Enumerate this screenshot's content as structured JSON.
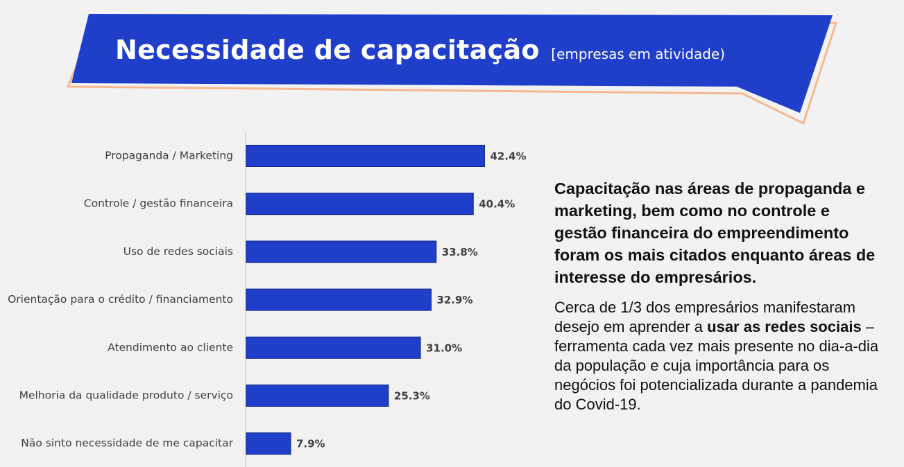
{
  "header": {
    "title": "Necessidade de capacitação",
    "subtitle": "[empresas em atividade)"
  },
  "colors": {
    "banner": "#1f3ec9",
    "banner_outline": "#f7b88f",
    "bar": "#1f3ec9",
    "bar_border": "#0f237f",
    "background": "#f2f2f2"
  },
  "chart_data": {
    "type": "bar",
    "orientation": "horizontal",
    "categories": [
      "Propaganda / Marketing",
      "Controle / gestão financeira",
      "Uso de redes sociais",
      "Orientação para o crédito / financiamento",
      "Atendimento ao cliente",
      "Melhoria da qualidade produto / serviço",
      "Não sinto necessidade de me capacitar"
    ],
    "values": [
      42.4,
      40.4,
      33.8,
      32.9,
      31.0,
      25.3,
      7.9
    ],
    "value_labels": [
      "42.4%",
      "40.4%",
      "33.8%",
      "32.9%",
      "31.0%",
      "25.3%",
      "7.9%"
    ],
    "unit": "%",
    "xlim": [
      0,
      50
    ],
    "grid": false,
    "legend": "none"
  },
  "side": {
    "lead": "Capacitação nas áreas de propaganda e marketing, bem como no controle e gestão financeira do empreendimento foram os mais citados enquanto áreas de interesse do empresários.",
    "body_part1": "Cerca de 1/3 dos empresários manifestaram desejo em aprender a ",
    "body_bold": "usar as redes sociais",
    "body_part2": " – ferramenta cada vez mais presente no dia-a-dia da população e cuja importância para os negócios foi potencializada durante a pandemia do Covid-19."
  }
}
